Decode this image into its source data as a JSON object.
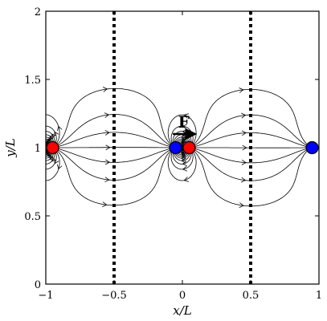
{
  "axes": {
    "x_label": "x/L",
    "y_label": "y/L",
    "x_range": [
      -1,
      1
    ],
    "y_range": [
      0,
      2
    ],
    "x_ticks": [
      {
        "value": -1,
        "label": "−1"
      },
      {
        "value": -0.5,
        "label": "−0.5"
      },
      {
        "value": 0,
        "label": "0"
      },
      {
        "value": 0.5,
        "label": "0.5"
      },
      {
        "value": 1,
        "label": "1"
      }
    ],
    "y_ticks": [
      {
        "value": 0,
        "label": "0"
      },
      {
        "value": 0.5,
        "label": "0.5"
      },
      {
        "value": 1,
        "label": "1"
      },
      {
        "value": 1.5,
        "label": "1.5"
      },
      {
        "value": 2,
        "label": "2"
      }
    ]
  },
  "dotted_lines": [
    {
      "x": -0.5
    },
    {
      "x": 0.5
    }
  ],
  "particles": [
    {
      "name": "red-particle-left-edge",
      "x": -0.95,
      "y": 1,
      "color": "#ff0000"
    },
    {
      "name": "blue-particle-center",
      "x": -0.05,
      "y": 1,
      "color": "#0000ff"
    },
    {
      "name": "red-particle-center",
      "x": 0.05,
      "y": 1,
      "color": "#ff0000"
    },
    {
      "name": "blue-particle-right-edge",
      "x": 0.95,
      "y": 1,
      "color": "#0000ff"
    }
  ],
  "force": {
    "label": "F",
    "from": [
      -0.07,
      1.1
    ],
    "to": [
      0.09,
      1.1
    ]
  },
  "colors": {
    "positive": "#ff0000",
    "negative": "#0000ff",
    "lines": "#000000"
  }
}
